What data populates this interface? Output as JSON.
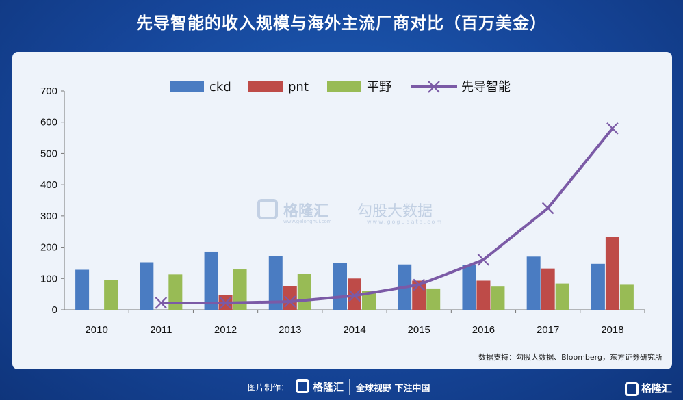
{
  "title": "先导智能的收入规模与海外主流厂商对比（百万美金）",
  "source": "数据支持：勾股大数据、Bloomberg，东方证券研究所",
  "watermark": {
    "brand": "格隆汇",
    "url": "www.gelonghui.com",
    "brand2": "勾股大数据",
    "url2": "www.gogudata.com"
  },
  "footer": {
    "made_by": "图片制作：",
    "brand": "格隆汇",
    "slogan": "全球视野 下注中国"
  },
  "corner_brand": "格隆汇",
  "colors": {
    "ckd": "#4a7cc2",
    "pnt": "#be4b48",
    "hirano": "#98bb55",
    "xiandao": "#7b5aa6"
  },
  "chart_data": {
    "type": "bar",
    "title": "先导智能的收入规模与海外主流厂商对比（百万美金）",
    "xlabel": "",
    "ylabel": "",
    "ylim": [
      0,
      700
    ],
    "yticks": [
      0,
      100,
      200,
      300,
      400,
      500,
      600,
      700
    ],
    "grid": false,
    "legend": "top",
    "categories": [
      "2010",
      "2011",
      "2012",
      "2013",
      "2014",
      "2015",
      "2016",
      "2017",
      "2018"
    ],
    "series": [
      {
        "name": "ckd",
        "type": "bar",
        "color": "#4a7cc2",
        "values": [
          128,
          152,
          186,
          171,
          150,
          145,
          143,
          170,
          147
        ]
      },
      {
        "name": "pnt",
        "type": "bar",
        "color": "#be4b48",
        "values": [
          null,
          null,
          48,
          76,
          100,
          93,
          93,
          132,
          233
        ]
      },
      {
        "name": "平野",
        "type": "bar",
        "color": "#98bb55",
        "values": [
          96,
          113,
          129,
          115,
          60,
          68,
          74,
          84,
          80
        ]
      },
      {
        "name": "先导智能",
        "type": "line",
        "color": "#7b5aa6",
        "values": [
          null,
          22,
          22,
          26,
          45,
          80,
          160,
          325,
          580
        ]
      }
    ]
  }
}
